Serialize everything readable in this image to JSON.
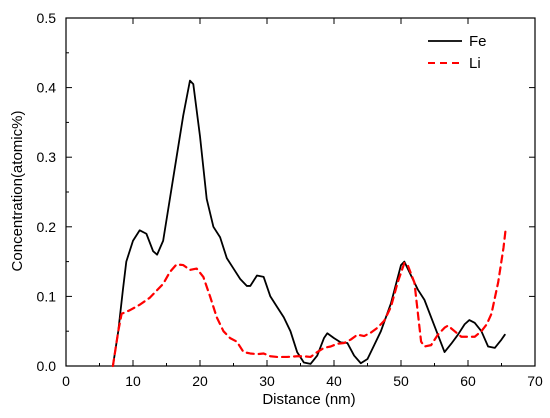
{
  "chart_data": {
    "type": "line",
    "title": "",
    "xlabel": "Distance (nm)",
    "ylabel": "Concentration(atomic%)",
    "xlim": [
      0,
      70
    ],
    "ylim": [
      0,
      0.5
    ],
    "x_ticks": [
      0,
      10,
      20,
      30,
      40,
      50,
      60,
      70
    ],
    "y_ticks": [
      0.0,
      0.1,
      0.2,
      0.3,
      0.4,
      0.5
    ],
    "x_tick_labels": [
      "0",
      "10",
      "20",
      "30",
      "40",
      "50",
      "60",
      "70"
    ],
    "y_tick_labels": [
      "0.0",
      "0.1",
      "0.2",
      "0.3",
      "0.4",
      "0.5"
    ],
    "grid": false,
    "legend": {
      "placement": "top-right"
    },
    "series": [
      {
        "name": "Fe",
        "color": "#000000",
        "style": "solid",
        "points": [
          [
            7.0,
            0.0
          ],
          [
            7.8,
            0.05
          ],
          [
            8.5,
            0.11
          ],
          [
            9.0,
            0.15
          ],
          [
            10.0,
            0.18
          ],
          [
            11.0,
            0.195
          ],
          [
            12.0,
            0.19
          ],
          [
            13.0,
            0.165
          ],
          [
            13.6,
            0.16
          ],
          [
            14.5,
            0.18
          ],
          [
            15.5,
            0.24
          ],
          [
            16.5,
            0.3
          ],
          [
            17.5,
            0.36
          ],
          [
            18.5,
            0.41
          ],
          [
            19.0,
            0.405
          ],
          [
            20.0,
            0.33
          ],
          [
            21.0,
            0.24
          ],
          [
            22.0,
            0.2
          ],
          [
            23.0,
            0.185
          ],
          [
            24.0,
            0.155
          ],
          [
            25.0,
            0.14
          ],
          [
            26.0,
            0.125
          ],
          [
            27.0,
            0.115
          ],
          [
            27.5,
            0.115
          ],
          [
            28.5,
            0.13
          ],
          [
            29.5,
            0.128
          ],
          [
            30.5,
            0.1
          ],
          [
            31.5,
            0.085
          ],
          [
            32.5,
            0.07
          ],
          [
            33.5,
            0.05
          ],
          [
            34.5,
            0.02
          ],
          [
            35.5,
            0.005
          ],
          [
            36.5,
            0.003
          ],
          [
            37.5,
            0.015
          ],
          [
            38.5,
            0.04
          ],
          [
            39.0,
            0.047
          ],
          [
            40.0,
            0.04
          ],
          [
            41.0,
            0.034
          ],
          [
            42.0,
            0.033
          ],
          [
            43.0,
            0.015
          ],
          [
            44.0,
            0.004
          ],
          [
            45.0,
            0.01
          ],
          [
            46.0,
            0.03
          ],
          [
            47.0,
            0.05
          ],
          [
            48.5,
            0.09
          ],
          [
            50.0,
            0.145
          ],
          [
            50.5,
            0.15
          ],
          [
            51.5,
            0.13
          ],
          [
            52.5,
            0.11
          ],
          [
            53.5,
            0.095
          ],
          [
            54.5,
            0.07
          ],
          [
            55.5,
            0.045
          ],
          [
            56.5,
            0.02
          ],
          [
            57.5,
            0.032
          ],
          [
            58.5,
            0.045
          ],
          [
            59.5,
            0.06
          ],
          [
            60.2,
            0.066
          ],
          [
            61.0,
            0.062
          ],
          [
            62.0,
            0.05
          ],
          [
            63.0,
            0.028
          ],
          [
            64.0,
            0.026
          ],
          [
            65.0,
            0.038
          ],
          [
            65.5,
            0.045
          ]
        ]
      },
      {
        "name": "Li",
        "color": "#ff0000",
        "style": "dashed",
        "points": [
          [
            7.0,
            0.0
          ],
          [
            7.8,
            0.05
          ],
          [
            8.3,
            0.075
          ],
          [
            9.5,
            0.08
          ],
          [
            11.0,
            0.088
          ],
          [
            12.5,
            0.098
          ],
          [
            13.5,
            0.108
          ],
          [
            14.5,
            0.118
          ],
          [
            15.5,
            0.135
          ],
          [
            16.5,
            0.146
          ],
          [
            17.5,
            0.145
          ],
          [
            18.5,
            0.138
          ],
          [
            19.5,
            0.14
          ],
          [
            20.5,
            0.128
          ],
          [
            21.5,
            0.1
          ],
          [
            22.5,
            0.07
          ],
          [
            23.5,
            0.05
          ],
          [
            24.5,
            0.04
          ],
          [
            25.5,
            0.035
          ],
          [
            26.5,
            0.02
          ],
          [
            27.5,
            0.018
          ],
          [
            28.5,
            0.017
          ],
          [
            29.5,
            0.018
          ],
          [
            30.5,
            0.014
          ],
          [
            31.5,
            0.013
          ],
          [
            33.0,
            0.013
          ],
          [
            34.5,
            0.014
          ],
          [
            35.5,
            0.014
          ],
          [
            36.5,
            0.013
          ],
          [
            37.5,
            0.02
          ],
          [
            38.5,
            0.026
          ],
          [
            39.5,
            0.028
          ],
          [
            40.5,
            0.032
          ],
          [
            41.5,
            0.033
          ],
          [
            42.5,
            0.038
          ],
          [
            43.5,
            0.045
          ],
          [
            44.5,
            0.043
          ],
          [
            45.5,
            0.048
          ],
          [
            46.5,
            0.055
          ],
          [
            47.5,
            0.065
          ],
          [
            48.5,
            0.085
          ],
          [
            49.5,
            0.12
          ],
          [
            50.5,
            0.148
          ],
          [
            51.0,
            0.145
          ],
          [
            52.0,
            0.12
          ],
          [
            53.0,
            0.035
          ],
          [
            53.5,
            0.028
          ],
          [
            54.5,
            0.03
          ],
          [
            55.5,
            0.045
          ],
          [
            56.5,
            0.055
          ],
          [
            57.0,
            0.058
          ],
          [
            58.0,
            0.05
          ],
          [
            59.0,
            0.042
          ],
          [
            60.0,
            0.042
          ],
          [
            61.0,
            0.042
          ],
          [
            62.0,
            0.05
          ],
          [
            62.8,
            0.06
          ],
          [
            63.5,
            0.075
          ],
          [
            64.5,
            0.12
          ],
          [
            65.3,
            0.17
          ],
          [
            65.6,
            0.195
          ]
        ]
      }
    ]
  }
}
